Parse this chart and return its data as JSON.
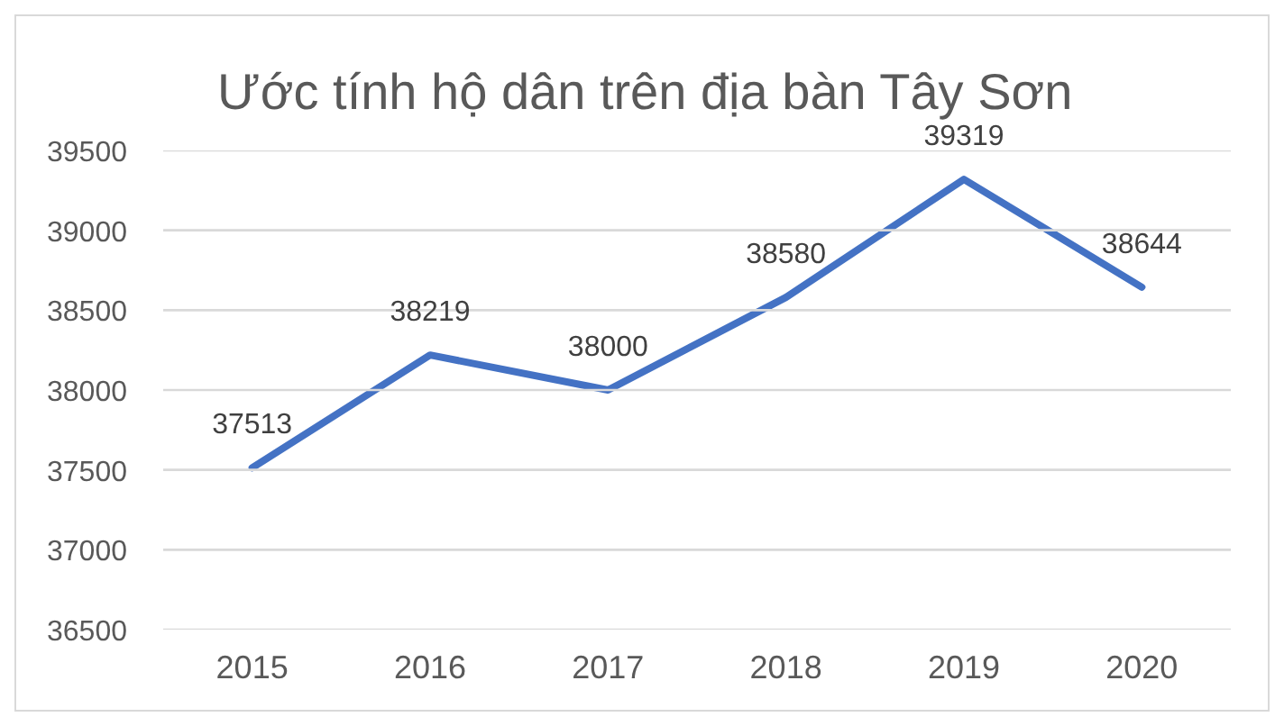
{
  "chart_data": {
    "type": "line",
    "title": "Ước tính hộ dân trên địa bàn Tây Sơn",
    "categories": [
      "2015",
      "2016",
      "2017",
      "2018",
      "2019",
      "2020"
    ],
    "series": [
      {
        "color": "#4472c4",
        "values": [
          37513,
          38219,
          38000,
          38580,
          39319,
          38644
        ]
      }
    ],
    "ylim": [
      36500,
      39500
    ],
    "yticks": [
      36500,
      37000,
      37500,
      38000,
      38500,
      39000,
      39500
    ],
    "grid": "y",
    "data_labels": true,
    "line_style": "solid"
  }
}
